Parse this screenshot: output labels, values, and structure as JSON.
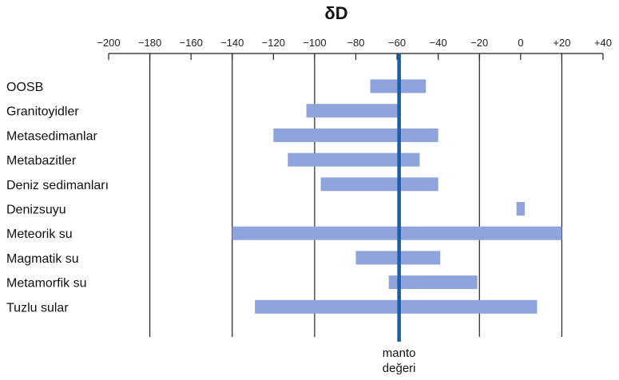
{
  "chart_data": {
    "type": "bar",
    "orientation": "horizontal-range",
    "title": "δD",
    "x_ticks": [
      "−200",
      "−180",
      "−160",
      "−140",
      "−120",
      "−100",
      "−80",
      "−60",
      "−40",
      "−20",
      "0",
      "+20",
      "+40"
    ],
    "x_tick_values": [
      -200,
      -180,
      -160,
      -140,
      -120,
      -100,
      -80,
      -60,
      -40,
      -20,
      0,
      20,
      40
    ],
    "xlim": [
      -200,
      40
    ],
    "vertical_gridlines_at": [
      -180,
      -140,
      -100,
      -20,
      20
    ],
    "categories": [
      "OOSB",
      "Granitoyidler",
      "Metasedimanlar",
      "Metabazitler",
      "Deniz sedimanları",
      "Denizsuyu",
      "Meteorik su",
      "Magmatik su",
      "Metamorfik su",
      "Tuzlu sular"
    ],
    "ranges": [
      [
        -73,
        -46
      ],
      [
        -104,
        -59
      ],
      [
        -120,
        -40
      ],
      [
        -113,
        -49
      ],
      [
        -97,
        -40
      ],
      [
        -2,
        2
      ],
      [
        -140,
        20
      ],
      [
        -80,
        -39
      ],
      [
        -64,
        -21
      ],
      [
        -129,
        8
      ]
    ],
    "bar_color": "#8fa3dc",
    "mantle_value": -59,
    "mantle_color": "#1a5fa8",
    "mantle_label_lines": [
      "manto",
      "değeri"
    ]
  }
}
